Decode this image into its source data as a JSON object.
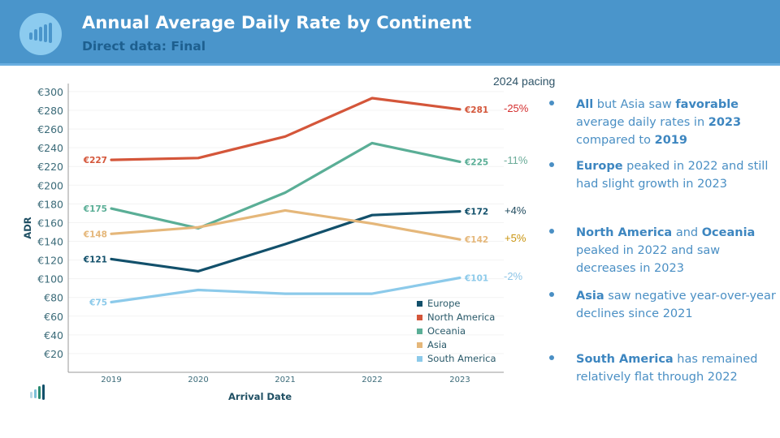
{
  "header": {
    "title": "Annual Average Daily Rate by Continent",
    "subtitle": "Direct data: Final",
    "logo_icon": "bar-chart-icon"
  },
  "pacing": {
    "title": "2024 pacing",
    "items": [
      {
        "series": "North America",
        "value": "-25%",
        "color": "#d42f2f"
      },
      {
        "series": "Oceania",
        "value": "-11%",
        "color": "#6aab98"
      },
      {
        "series": "Europe",
        "value": "+4%",
        "color": "#1f4a5e"
      },
      {
        "series": "Asia",
        "value": "+5%",
        "color": "#c9940f"
      },
      {
        "series": "South America",
        "value": "-2%",
        "color": "#8cc4e6"
      }
    ]
  },
  "bullets": [
    {
      "parts": [
        {
          "b": "All"
        },
        {
          "t": " but Asia saw "
        },
        {
          "b": "favorable"
        },
        {
          "t": " average daily rates in "
        },
        {
          "b": "2023"
        },
        {
          "t": " compared to "
        },
        {
          "b": "2019"
        }
      ]
    },
    {
      "parts": [
        {
          "b": "Europe"
        },
        {
          "t": " peaked in 2022 and still had slight growth in 2023"
        }
      ]
    },
    {
      "parts": [
        {
          "b": "North America"
        },
        {
          "t": " and "
        },
        {
          "b": "Oceania"
        },
        {
          "t": " peaked in 2022 and saw decreases in 2023"
        }
      ]
    },
    {
      "parts": [
        {
          "b": "Asia"
        },
        {
          "t": " saw negative year-over-year declines since 2021"
        }
      ]
    },
    {
      "parts": [
        {
          "b": "South America"
        },
        {
          "t": " has remained relatively flat through 2022"
        }
      ]
    }
  ],
  "chart_data": {
    "type": "line",
    "title": "Annual Average Daily Rate by Continent",
    "xlabel": "Arrival Date",
    "ylabel": "ADR",
    "categories": [
      "2019",
      "2020",
      "2021",
      "2022",
      "2023"
    ],
    "y_ticks": [
      "€20",
      "€40",
      "€60",
      "€80",
      "€100",
      "€120",
      "€140",
      "€160",
      "€180",
      "€200",
      "€220",
      "€240",
      "€260",
      "€280",
      "€300"
    ],
    "ylim": [
      0,
      310
    ],
    "grid": true,
    "legend_position": "bottom-right",
    "series": [
      {
        "name": "Europe",
        "color": "#12506b",
        "values": [
          121,
          108,
          137,
          168,
          172
        ],
        "start_label": "€121",
        "end_label": "€172"
      },
      {
        "name": "North America",
        "color": "#d4563a",
        "values": [
          227,
          229,
          252,
          293,
          281
        ],
        "start_label": "€227",
        "end_label": "€281"
      },
      {
        "name": "Oceania",
        "color": "#5aae96",
        "values": [
          175,
          154,
          192,
          245,
          225
        ],
        "start_label": "€175",
        "end_label": "€225"
      },
      {
        "name": "Asia",
        "color": "#e5b77a",
        "values": [
          148,
          155,
          173,
          159,
          142
        ],
        "start_label": "€148",
        "end_label": "€142"
      },
      {
        "name": "South America",
        "color": "#8ccaea",
        "values": [
          75,
          88,
          84,
          84,
          101
        ],
        "start_label": "€75",
        "end_label": "€101"
      }
    ]
  }
}
